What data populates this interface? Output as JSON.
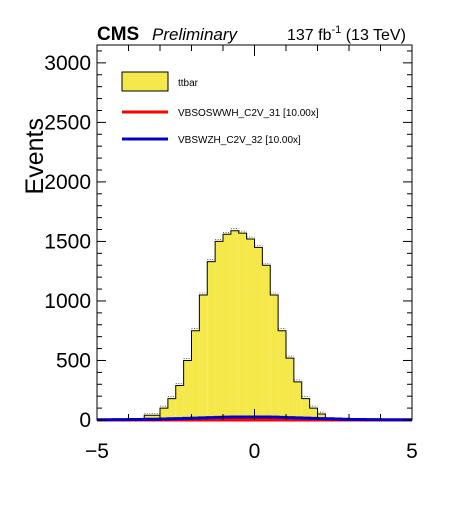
{
  "header": {
    "experiment": "CMS",
    "status": "Preliminary",
    "lumi_main": "137 fb",
    "lumi_exp": "-1",
    "lumi_energy": " (13 TeV)"
  },
  "chart_data": {
    "type": "bar",
    "xlabel": "",
    "ylabel": "Events",
    "xlim": [
      -5,
      5
    ],
    "ylim": [
      0,
      3150
    ],
    "x_ticks": [
      -5,
      0,
      5
    ],
    "y_ticks": [
      0,
      500,
      1000,
      1500,
      2000,
      2500,
      3000
    ],
    "bin_edges": [
      -5,
      -4.5,
      -4,
      -3.5,
      -3,
      -2.75,
      -2.5,
      -2.25,
      -2,
      -1.75,
      -1.5,
      -1.25,
      -1,
      -0.75,
      -0.5,
      -0.25,
      0,
      0.25,
      0.5,
      0.75,
      1,
      1.25,
      1.5,
      1.75,
      2,
      2.25,
      2.5,
      2.75,
      3,
      3.5,
      4,
      4.5,
      5
    ],
    "legend": [
      {
        "label": "ttbar",
        "style": "fill",
        "color": "#f4e84a"
      },
      {
        "label": "VBSOSWWH_C2V_31 [10.00x]",
        "style": "line",
        "color": "#ff0000"
      },
      {
        "label": "VBSWZH_C2V_32 [10.00x]",
        "style": "line",
        "color": "#0000cc"
      }
    ],
    "series": [
      {
        "name": "ttbar",
        "color": "#f4e84a",
        "values": [
          2,
          3,
          8,
          40,
          100,
          180,
          290,
          500,
          750,
          1050,
          1330,
          1500,
          1560,
          1590,
          1570,
          1520,
          1450,
          1300,
          1050,
          750,
          520,
          320,
          180,
          100,
          50,
          15,
          5,
          3,
          2,
          2,
          1,
          1
        ]
      },
      {
        "name": "VBSOSWWH_C2V_31 [10.00x]",
        "color": "#ff0000",
        "values": [
          0,
          0,
          0,
          0,
          0,
          0,
          0,
          0,
          0,
          0,
          0,
          0,
          0,
          0,
          0,
          0,
          0,
          0,
          0,
          0,
          0,
          0,
          0,
          0,
          0,
          0,
          0,
          0,
          0,
          0,
          0,
          0
        ]
      },
      {
        "name": "VBSWZH_C2V_32 [10.00x]",
        "color": "#0000cc",
        "values": [
          2,
          3,
          4,
          6,
          8,
          10,
          12,
          14,
          16,
          18,
          20,
          22,
          24,
          25,
          25,
          25,
          25,
          25,
          24,
          22,
          20,
          18,
          16,
          14,
          12,
          10,
          8,
          6,
          4,
          3,
          2,
          2
        ]
      }
    ]
  }
}
